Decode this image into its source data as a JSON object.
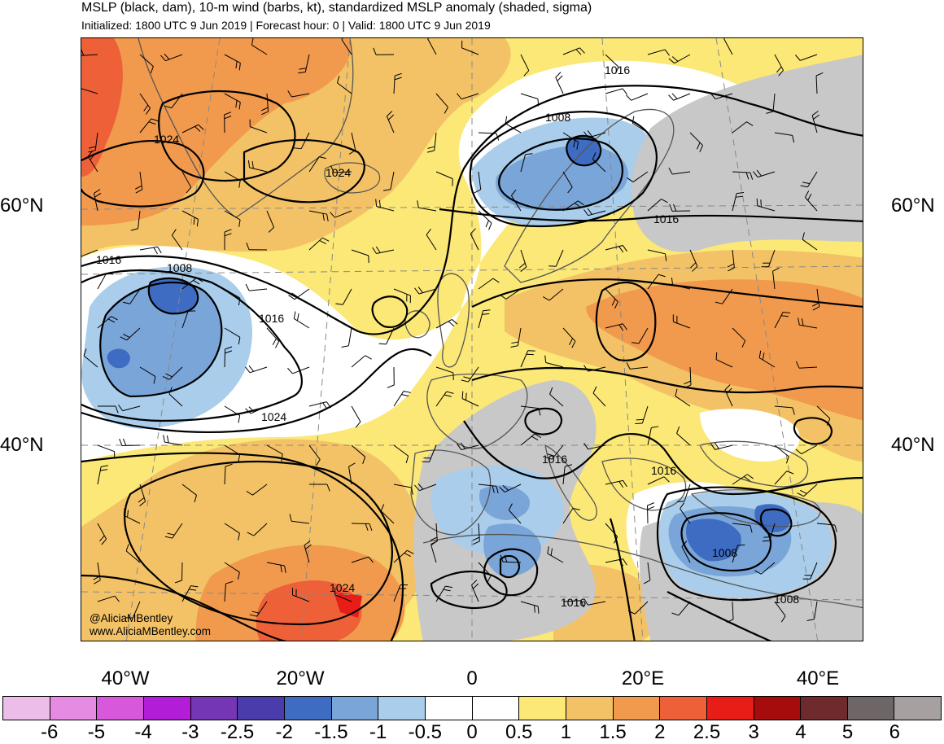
{
  "title": {
    "line1": "MSLP (black, dam), 10-m wind (barbs, kt), standardized MSLP anomaly (shaded, sigma)",
    "line2": "Initialized: 1800 UTC 9 Jun 2019 | Forecast hour: 0 | Valid: 1800 UTC 9 Jun 2019"
  },
  "axes": {
    "lat_labels": [
      "60°N",
      "40°N"
    ],
    "lon_labels": [
      "40°W",
      "20°W",
      "0",
      "20°E",
      "40°E"
    ]
  },
  "credit": {
    "handle": "@AliciaMBentley",
    "website": "www.AliciaMBentley.com"
  },
  "contour_labels": [
    {
      "value": "1016"
    },
    {
      "value": "1008"
    },
    {
      "value": "1024"
    },
    {
      "value": "1024"
    },
    {
      "value": "1016"
    },
    {
      "value": "1008"
    },
    {
      "value": "1016"
    },
    {
      "value": "1024"
    },
    {
      "value": "1016"
    },
    {
      "value": "1016"
    },
    {
      "value": "1016"
    },
    {
      "value": "1008"
    },
    {
      "value": "1024"
    },
    {
      "value": "1016"
    },
    {
      "value": "1008"
    }
  ],
  "colorbar": {
    "labels": [
      "-6",
      "-5",
      "-4",
      "-3",
      "-2.5",
      "-2",
      "-1.5",
      "-1",
      "-0.5",
      "0",
      "0.5",
      "1",
      "1.5",
      "2",
      "2.5",
      "3",
      "4",
      "5",
      "6"
    ],
    "colors": [
      "#ecbde8",
      "#e68be2",
      "#d858dc",
      "#b21ed7",
      "#7436b4",
      "#4a3caa",
      "#3e6cc2",
      "#7aa5d8",
      "#a9cdea",
      "#ffffff",
      "#ffffff",
      "#fbe876",
      "#f4c266",
      "#f19a4e",
      "#ee6138",
      "#e81d18",
      "#a70c0c",
      "#6e2a2c",
      "#6e6666",
      "#a6a0a0"
    ]
  },
  "map_colors": {
    "pos_05": "#fbe876",
    "pos_10": "#f4c266",
    "pos_15": "#f19a4e",
    "pos_20": "#ee6138",
    "pos_25": "#e81d18",
    "neg_05": "#a9cdea",
    "neg_10": "#7aa5d8",
    "neg_15": "#3e6cc2",
    "land_gray": "#c8c8c8",
    "coast": "#555555"
  }
}
